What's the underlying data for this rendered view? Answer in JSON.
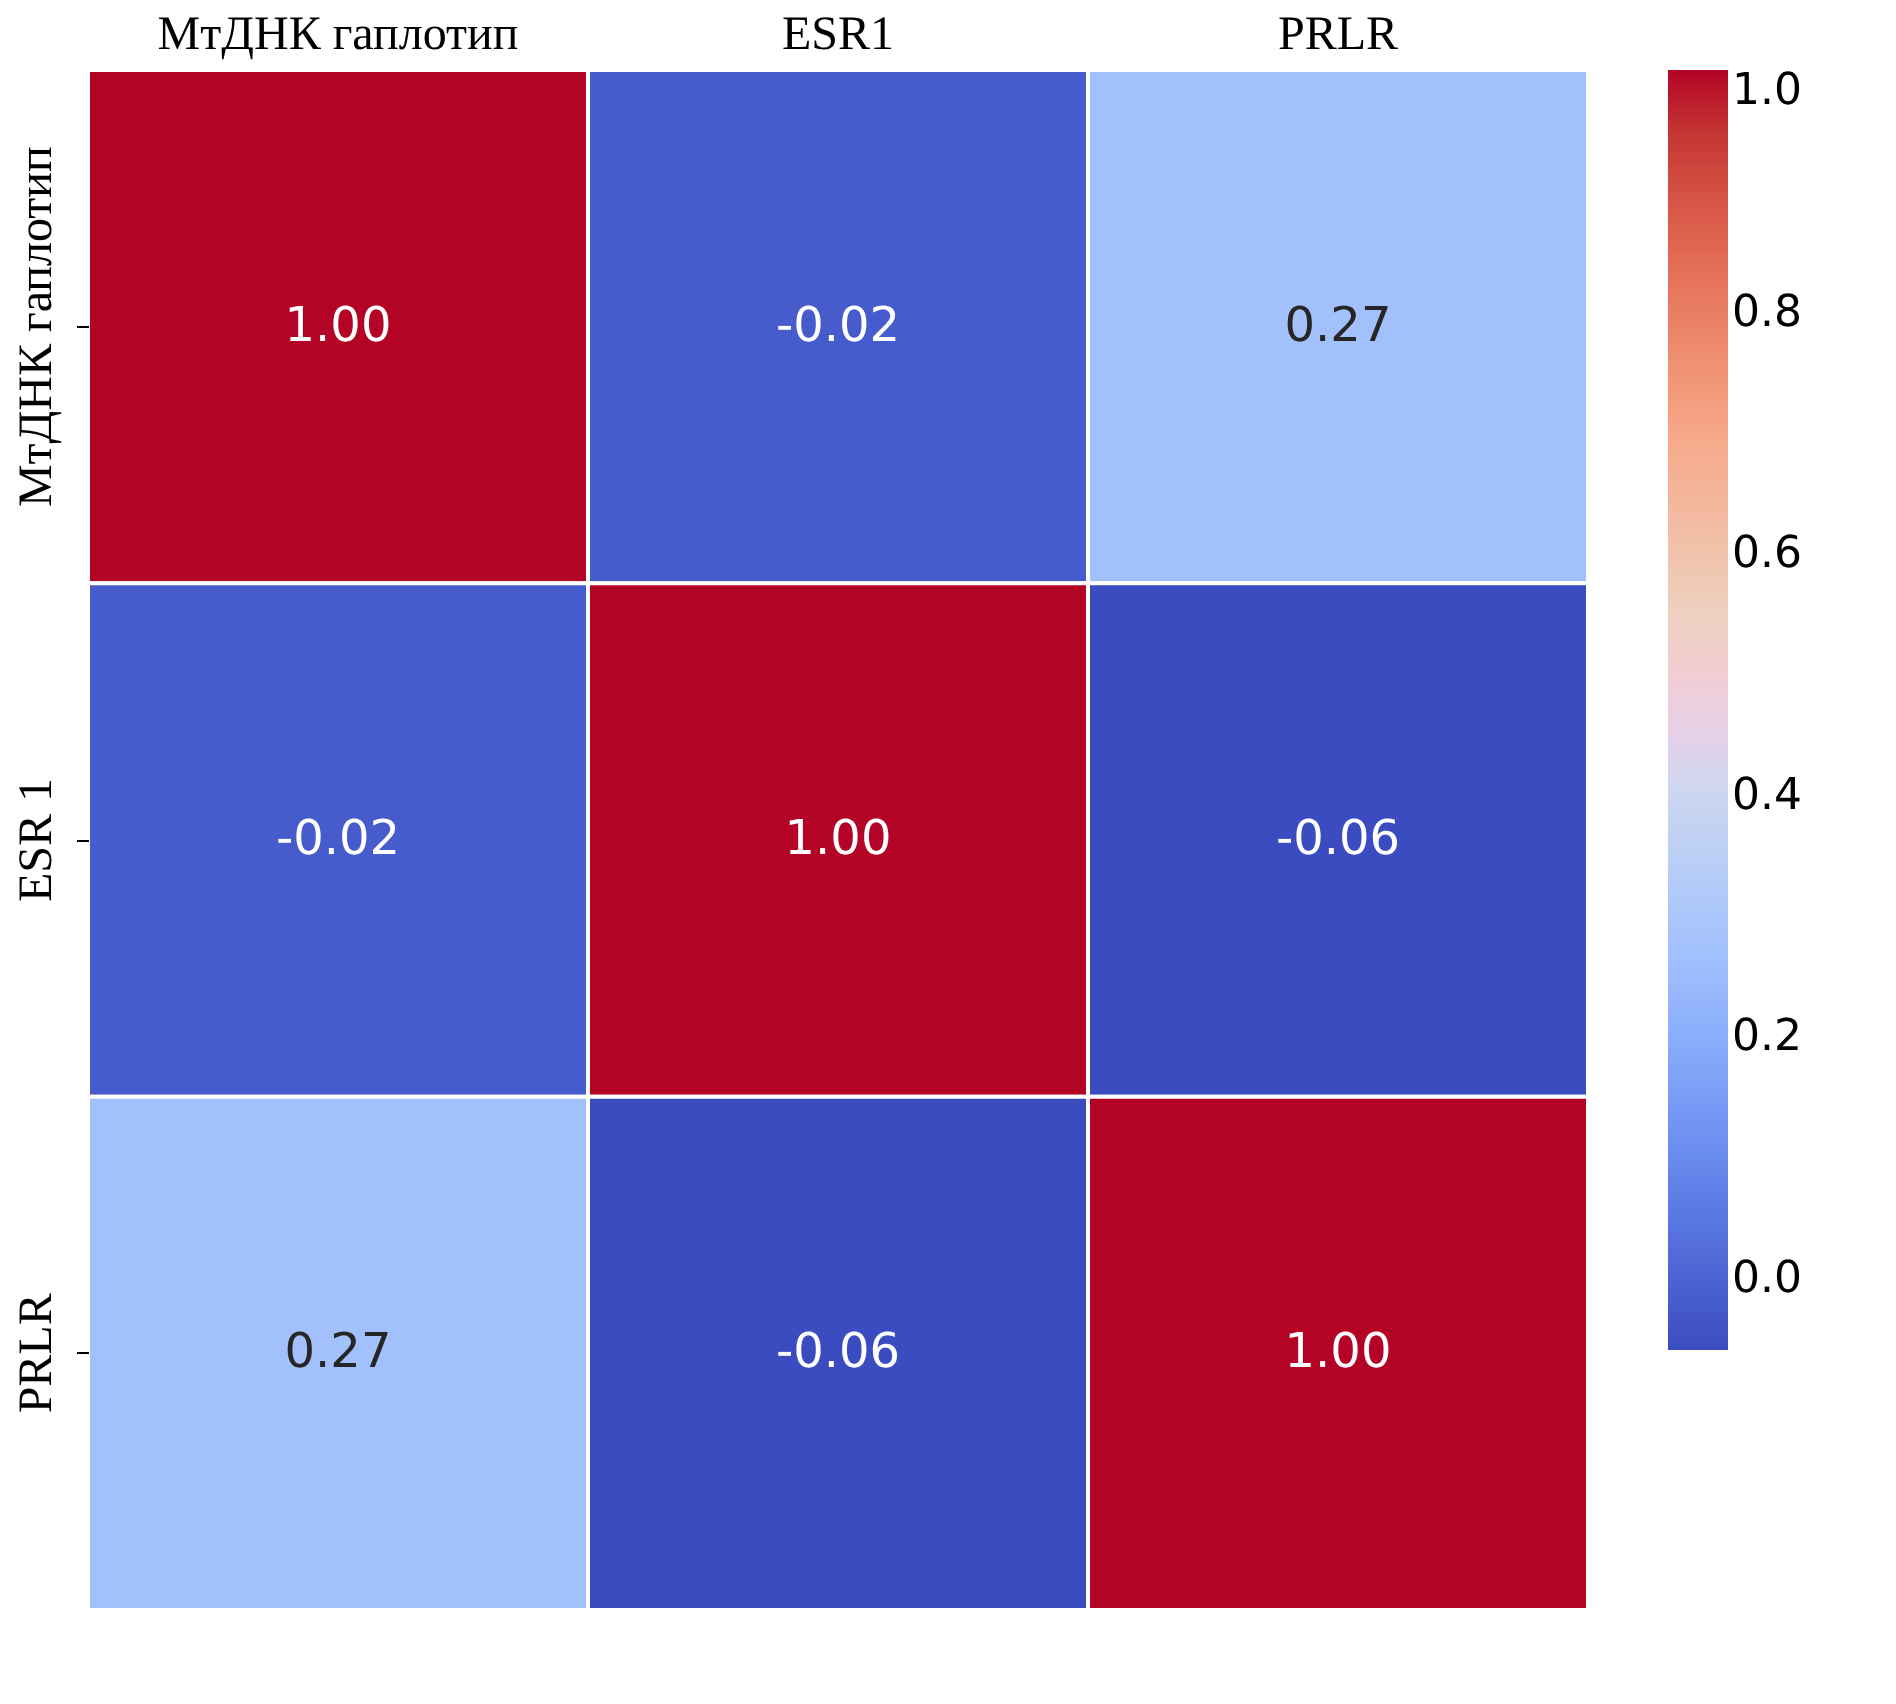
{
  "chart_data": {
    "type": "heatmap",
    "categories": [
      "МтДНК гаплотип",
      "ESR1",
      "PRLR"
    ],
    "y_categories": [
      "МтДНК гаплотип",
      "ESR 1",
      "PRLR"
    ],
    "cells": [
      [
        1.0,
        -0.02,
        0.27
      ],
      [
        -0.02,
        1.0,
        -0.06
      ],
      [
        0.27,
        -0.06,
        1.0
      ]
    ],
    "cell_labels": [
      [
        "1.00",
        "-0.02",
        "0.27"
      ],
      [
        "-0.02",
        "1.00",
        "-0.06"
      ],
      [
        "0.27",
        "-0.06",
        "1.00"
      ]
    ],
    "clim": [
      -0.06,
      1.0
    ],
    "cticks": [
      {
        "value": 0.0,
        "label": "0.0"
      },
      {
        "value": 0.2,
        "label": "0.2"
      },
      {
        "value": 0.4,
        "label": "0.4"
      },
      {
        "value": 0.6,
        "label": "0.6"
      },
      {
        "value": 0.8,
        "label": "0.8"
      },
      {
        "value": 1.0,
        "label": "1.0"
      }
    ]
  }
}
